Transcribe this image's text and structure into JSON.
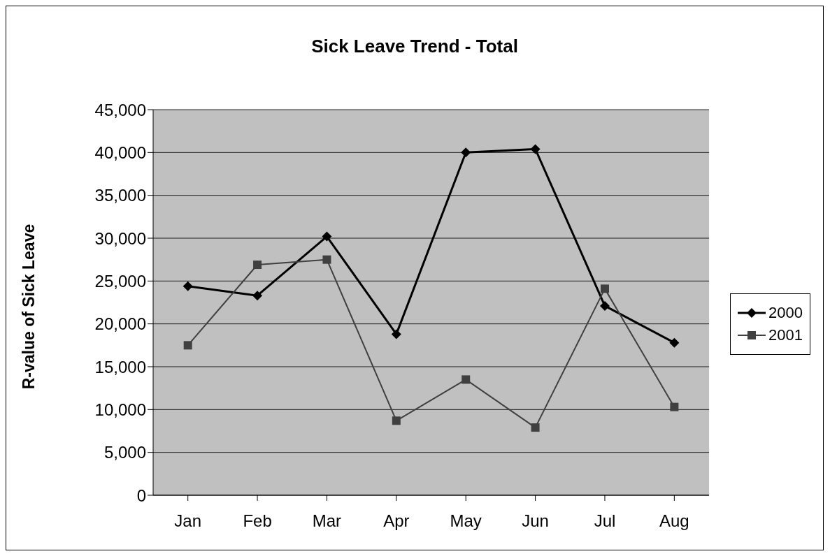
{
  "chart_data": {
    "type": "line",
    "title": "Sick Leave Trend - Total",
    "ylabel": "R-value of Sick Leave",
    "categories": [
      "Jan",
      "Feb",
      "Mar",
      "Apr",
      "May",
      "Jun",
      "Jul",
      "Aug"
    ],
    "series": [
      {
        "name": "2000",
        "color": "#000000",
        "marker": "diamond",
        "values": [
          24400,
          23300,
          30200,
          18800,
          40000,
          40400,
          22100,
          17800
        ]
      },
      {
        "name": "2001",
        "color": "#404040",
        "marker": "square",
        "values": [
          17500,
          26900,
          27500,
          8700,
          13500,
          7900,
          24100,
          10300
        ]
      }
    ],
    "ylim": [
      0,
      45000
    ],
    "yticks": [
      0,
      {
        "value": 5000,
        "label": "5,000"
      },
      {
        "value": 10000,
        "label": "10,000"
      },
      {
        "value": 15000,
        "label": "15,000"
      },
      {
        "value": 20000,
        "label": "20,000"
      },
      {
        "value": 25000,
        "label": "25,000"
      },
      {
        "value": 30000,
        "label": "30,000"
      },
      {
        "value": 35000,
        "label": "35,000"
      },
      {
        "value": 40000,
        "label": "40,000"
      },
      {
        "value": 45000,
        "label": "45,000"
      }
    ],
    "grid": "y",
    "legend": "right",
    "line_style": "solid"
  }
}
